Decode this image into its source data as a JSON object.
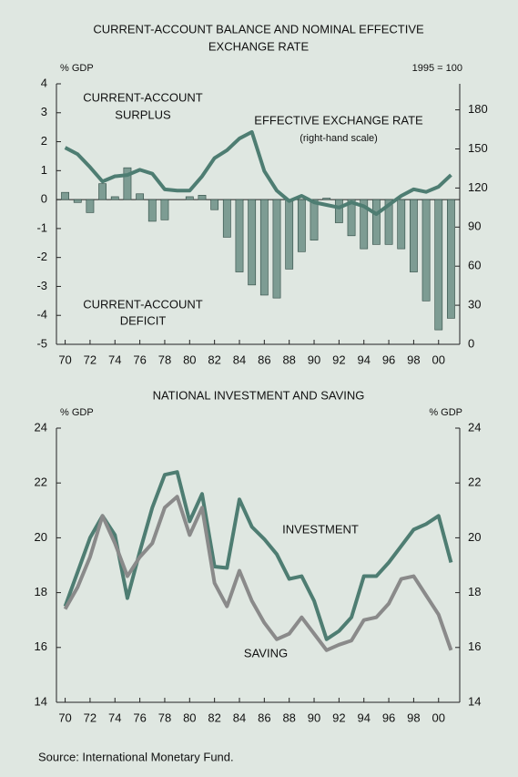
{
  "chart_data": [
    {
      "type": "combo",
      "title": [
        "CURRENT-ACCOUNT BALANCE AND NOMINAL EFFECTIVE",
        "EXCHANGE RATE"
      ],
      "y_label": "% GDP",
      "y2_label": "1995 = 100",
      "annotations": [
        [
          "CURRENT-ACCOUNT",
          "SURPLUS"
        ],
        [
          "EFFECTIVE EXCHANGE RATE",
          "(right-hand scale)"
        ],
        [
          "CURRENT-ACCOUNT",
          "DEFICIT"
        ]
      ],
      "x": [
        1970,
        1971,
        1972,
        1973,
        1974,
        1975,
        1976,
        1977,
        1978,
        1979,
        1980,
        1981,
        1982,
        1983,
        1984,
        1985,
        1986,
        1987,
        1988,
        1989,
        1990,
        1991,
        1992,
        1993,
        1994,
        1995,
        1996,
        1997,
        1998,
        1999,
        2000,
        2001
      ],
      "xlim": [
        1969.3,
        2001.7
      ],
      "xticks": [
        {
          "value": 1970,
          "label": "70"
        },
        {
          "value": 1972,
          "label": "72"
        },
        {
          "value": 1974,
          "label": "74"
        },
        {
          "value": 1976,
          "label": "76"
        },
        {
          "value": 1978,
          "label": "78"
        },
        {
          "value": 1980,
          "label": "80"
        },
        {
          "value": 1982,
          "label": "82"
        },
        {
          "value": 1984,
          "label": "84"
        },
        {
          "value": 1986,
          "label": "86"
        },
        {
          "value": 1988,
          "label": "88"
        },
        {
          "value": 1990,
          "label": "90"
        },
        {
          "value": 1992,
          "label": "92"
        },
        {
          "value": 1994,
          "label": "94"
        },
        {
          "value": 1996,
          "label": "96"
        },
        {
          "value": 1998,
          "label": "98"
        },
        {
          "value": 2000,
          "label": "00"
        }
      ],
      "ylim": [
        -5,
        4
      ],
      "yticks": [
        -5,
        -4,
        -3,
        -2,
        -1,
        0,
        1,
        2,
        3,
        4
      ],
      "y2lim": [
        0,
        200
      ],
      "y2ticks": [
        0,
        30,
        60,
        90,
        120,
        150,
        180
      ],
      "series": [
        {
          "type": "bar",
          "color": "#7d9c93",
          "values": [
            0.25,
            -0.1,
            -0.45,
            0.55,
            0.1,
            1.1,
            0.2,
            -0.75,
            -0.7,
            0.0,
            0.1,
            0.15,
            -0.35,
            -1.3,
            -2.5,
            -2.95,
            -3.3,
            -3.4,
            -2.4,
            -1.8,
            -1.4,
            0.05,
            -0.8,
            -1.25,
            -1.7,
            -1.55,
            -1.55,
            -1.7,
            -2.5,
            -3.5,
            -4.5,
            -4.1
          ]
        },
        {
          "type": "line",
          "axis": "y2",
          "color": "#4e7d72",
          "values": [
            151,
            146,
            136,
            125,
            129,
            130,
            134,
            131,
            119,
            118,
            118,
            129,
            143,
            149,
            158,
            163,
            133,
            118,
            110,
            114,
            109,
            107,
            105,
            109,
            106,
            100,
            107,
            114,
            119,
            117,
            121,
            130
          ]
        }
      ]
    },
    {
      "type": "line",
      "title": "NATIONAL INVESTMENT AND SAVING",
      "y_label": "% GDP",
      "y2_label": "% GDP",
      "x": [
        1970,
        1971,
        1972,
        1973,
        1974,
        1975,
        1976,
        1977,
        1978,
        1979,
        1980,
        1981,
        1982,
        1983,
        1984,
        1985,
        1986,
        1987,
        1988,
        1989,
        1990,
        1991,
        1992,
        1993,
        1994,
        1995,
        1996,
        1997,
        1998,
        1999,
        2000,
        2001
      ],
      "xlim": [
        1969.3,
        2001.7
      ],
      "xticks": [
        {
          "value": 1970,
          "label": "70"
        },
        {
          "value": 1972,
          "label": "72"
        },
        {
          "value": 1974,
          "label": "74"
        },
        {
          "value": 1976,
          "label": "76"
        },
        {
          "value": 1978,
          "label": "78"
        },
        {
          "value": 1980,
          "label": "80"
        },
        {
          "value": 1982,
          "label": "82"
        },
        {
          "value": 1984,
          "label": "84"
        },
        {
          "value": 1986,
          "label": "86"
        },
        {
          "value": 1988,
          "label": "88"
        },
        {
          "value": 1990,
          "label": "90"
        },
        {
          "value": 1992,
          "label": "92"
        },
        {
          "value": 1994,
          "label": "94"
        },
        {
          "value": 1996,
          "label": "96"
        },
        {
          "value": 1998,
          "label": "98"
        },
        {
          "value": 2000,
          "label": "00"
        }
      ],
      "ylim": [
        14,
        24
      ],
      "yticks": [
        14,
        16,
        18,
        20,
        22,
        24
      ],
      "y2lim": [
        14,
        24
      ],
      "y2ticks": [
        14,
        16,
        18,
        20,
        22,
        24
      ],
      "series": [
        {
          "name": "INVESTMENT",
          "color": "#4e7d72",
          "values": [
            17.5,
            18.75,
            20.0,
            20.8,
            20.1,
            17.8,
            19.5,
            21.1,
            22.3,
            22.4,
            20.6,
            21.6,
            18.95,
            18.9,
            21.4,
            20.4,
            19.95,
            19.4,
            18.5,
            18.6,
            17.7,
            16.3,
            16.6,
            17.1,
            18.6,
            18.6,
            19.1,
            19.7,
            20.3,
            20.5,
            20.8,
            19.1
          ]
        },
        {
          "name": "SAVING",
          "color": "#8a8a8a",
          "values": [
            17.4,
            18.2,
            19.3,
            20.8,
            19.8,
            18.6,
            19.3,
            19.8,
            21.1,
            21.5,
            20.1,
            21.1,
            18.35,
            17.5,
            18.8,
            17.7,
            16.9,
            16.3,
            16.5,
            17.1,
            16.5,
            15.9,
            16.1,
            16.25,
            17.0,
            17.1,
            17.6,
            18.5,
            18.6,
            17.9,
            17.2,
            15.9
          ]
        }
      ]
    }
  ],
  "source": "Source: International Monetary Fund."
}
